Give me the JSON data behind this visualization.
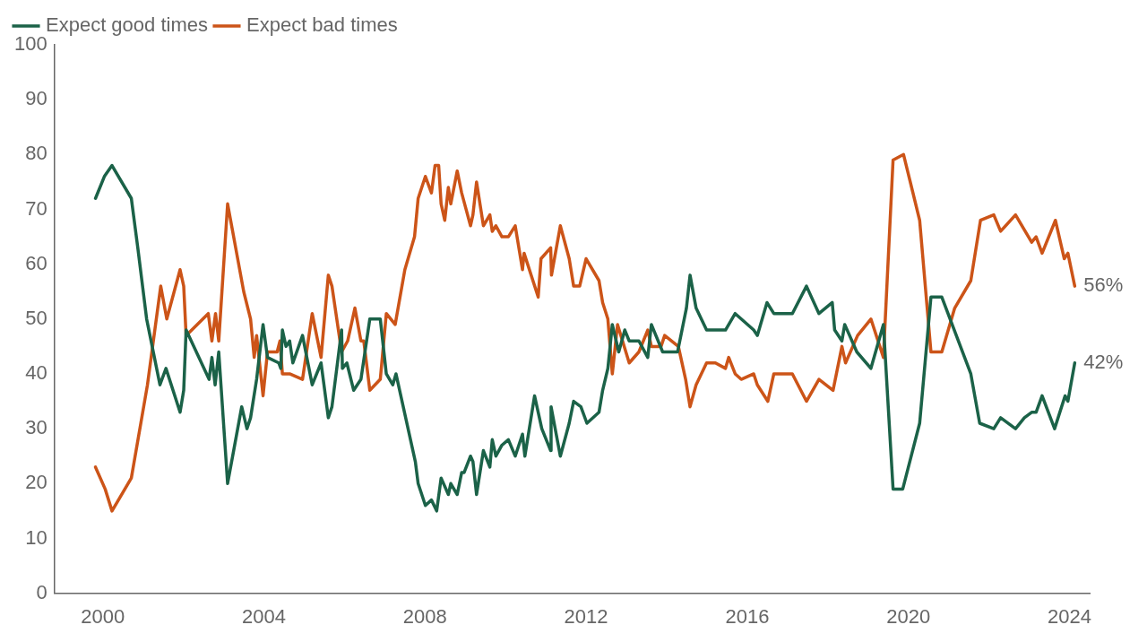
{
  "chart_data": {
    "type": "line",
    "legend": "top left",
    "grid": false,
    "marker": "none",
    "line_style": "solid",
    "xlim": [
      1998.8,
      2024.5
    ],
    "xticks": [
      2000,
      2004,
      2008,
      2012,
      2016,
      2020,
      2024
    ],
    "ylim": [
      0,
      100
    ],
    "yticks": [
      0,
      10,
      20,
      30,
      40,
      50,
      60,
      70,
      80,
      90,
      100
    ],
    "annotations": [
      {
        "text": "56%",
        "x": 2024.13,
        "y": 56
      },
      {
        "text": "42%",
        "x": 2024.13,
        "y": 42
      }
    ],
    "series": [
      {
        "name": "Expect good times",
        "color": "#1b6248",
        "x": [
          1999.82,
          2000.04,
          2000.23,
          2000.71,
          2000.87,
          2001.09,
          2001.42,
          2001.57,
          2001.92,
          2002.01,
          2002.07,
          2002.64,
          2002.71,
          2002.79,
          2002.88,
          2003.1,
          2003.45,
          2003.58,
          2003.67,
          2003.82,
          2003.98,
          2004.09,
          2004.37,
          2004.42,
          2004.46,
          2004.55,
          2004.64,
          2004.72,
          2004.96,
          2005.2,
          2005.42,
          2005.6,
          2005.69,
          2005.93,
          2005.95,
          2006.06,
          2006.23,
          2006.41,
          2006.63,
          2006.89,
          2007.04,
          2007.2,
          2007.28,
          2007.76,
          2007.83,
          2008.01,
          2008.16,
          2008.29,
          2008.4,
          2008.58,
          2008.64,
          2008.8,
          2008.91,
          2008.97,
          2009.13,
          2009.19,
          2009.28,
          2009.45,
          2009.61,
          2009.67,
          2009.76,
          2009.91,
          2010.07,
          2010.24,
          2010.42,
          2010.48,
          2010.72,
          2010.9,
          2011.12,
          2011.13,
          2011.36,
          2011.58,
          2011.69,
          2011.87,
          2012.02,
          2012.32,
          2012.41,
          2012.54,
          2012.65,
          2012.81,
          2012.96,
          2013.07,
          2013.31,
          2013.53,
          2013.62,
          2013.9,
          2014.27,
          2014.49,
          2014.58,
          2014.73,
          2014.99,
          2015.46,
          2015.7,
          2016.16,
          2016.25,
          2016.49,
          2016.66,
          2017.12,
          2017.47,
          2017.78,
          2018.11,
          2018.17,
          2018.35,
          2018.42,
          2018.72,
          2019.07,
          2019.38,
          2019.62,
          2019.86,
          2020.28,
          2020.56,
          2020.83,
          2021.55,
          2021.77,
          2022.12,
          2022.29,
          2022.66,
          2022.88,
          2023.06,
          2023.17,
          2023.32,
          2023.63,
          2023.89,
          2023.96,
          2024.13
        ],
        "values": [
          72,
          76,
          78,
          72,
          63,
          50,
          38,
          41,
          33,
          37,
          48,
          39,
          43,
          38,
          44,
          20,
          34,
          30,
          32,
          39,
          49,
          43,
          42,
          41,
          48,
          45,
          46,
          42,
          47,
          38,
          42,
          32,
          34,
          48,
          41,
          42,
          37,
          39,
          50,
          50,
          40,
          38,
          40,
          24,
          20,
          16,
          17,
          15,
          21,
          18,
          20,
          18,
          22,
          22,
          25,
          24,
          18,
          26,
          23,
          28,
          25,
          27,
          28,
          25,
          29,
          25,
          36,
          30,
          26,
          34,
          25,
          31,
          35,
          34,
          31,
          33,
          37,
          41,
          49,
          44,
          48,
          46,
          46,
          43,
          49,
          44,
          44,
          52,
          58,
          52,
          48,
          48,
          51,
          48,
          47,
          53,
          51,
          51,
          56,
          51,
          53,
          48,
          46,
          49,
          44,
          41,
          49,
          19,
          19,
          31,
          54,
          54,
          40,
          31,
          30,
          32,
          30,
          32,
          33,
          33,
          36,
          30,
          36,
          35,
          42
        ]
      },
      {
        "name": "Expect bad times",
        "color": "#cc5418",
        "x": [
          1999.82,
          2000.06,
          2000.23,
          2000.71,
          2001.11,
          2001.44,
          2001.59,
          2001.92,
          2002.01,
          2002.07,
          2002.62,
          2002.71,
          2002.8,
          2002.88,
          2003.1,
          2003.5,
          2003.67,
          2003.76,
          2003.82,
          2003.98,
          2004.09,
          2004.33,
          2004.4,
          2004.46,
          2004.64,
          2004.96,
          2005.2,
          2005.42,
          2005.6,
          2005.69,
          2005.93,
          2006.08,
          2006.26,
          2006.41,
          2006.48,
          2006.63,
          2006.89,
          2007.04,
          2007.26,
          2007.5,
          2007.74,
          2007.83,
          2008.01,
          2008.16,
          2008.25,
          2008.34,
          2008.4,
          2008.49,
          2008.58,
          2008.64,
          2008.8,
          2008.91,
          2009.13,
          2009.19,
          2009.28,
          2009.45,
          2009.61,
          2009.67,
          2009.76,
          2009.91,
          2010.07,
          2010.24,
          2010.42,
          2010.46,
          2010.81,
          2010.88,
          2011.12,
          2011.14,
          2011.36,
          2011.58,
          2011.69,
          2011.84,
          2012,
          2012.32,
          2012.41,
          2012.54,
          2012.65,
          2012.78,
          2013.07,
          2013.31,
          2013.53,
          2013.62,
          2013.86,
          2013.95,
          2014.29,
          2014.47,
          2014.58,
          2014.73,
          2014.99,
          2015.21,
          2015.46,
          2015.54,
          2015.7,
          2015.85,
          2016.16,
          2016.25,
          2016.51,
          2016.66,
          2017.12,
          2017.47,
          2017.78,
          2018.13,
          2018.35,
          2018.44,
          2018.74,
          2019.07,
          2019.38,
          2019.62,
          2019.88,
          2020.28,
          2020.56,
          2020.83,
          2021.15,
          2021.55,
          2021.79,
          2022.12,
          2022.29,
          2022.66,
          2023.06,
          2023.17,
          2023.32,
          2023.65,
          2023.87,
          2023.96,
          2024.13
        ],
        "values": [
          23,
          19,
          15,
          21,
          38,
          56,
          50,
          59,
          56,
          47,
          51,
          46,
          51,
          46,
          71,
          55,
          50,
          43,
          47,
          36,
          44,
          44,
          46,
          40,
          40,
          39,
          51,
          43,
          58,
          56,
          44,
          46,
          52,
          46,
          46,
          37,
          39,
          51,
          49,
          59,
          65,
          72,
          76,
          73,
          78,
          78,
          71,
          68,
          74,
          71,
          77,
          73,
          67,
          69,
          75,
          67,
          69,
          66,
          67,
          65,
          65,
          67,
          59,
          62,
          54,
          61,
          63,
          58,
          67,
          61,
          56,
          56,
          61,
          57,
          53,
          50,
          40,
          49,
          42,
          44,
          48,
          45,
          45,
          47,
          45,
          39,
          34,
          38,
          42,
          42,
          41,
          43,
          40,
          39,
          40,
          38,
          35,
          40,
          40,
          35,
          39,
          37,
          45,
          42,
          47,
          50,
          43,
          79,
          80,
          68,
          44,
          44,
          52,
          57,
          68,
          69,
          66,
          69,
          64,
          65,
          62,
          68,
          61,
          62,
          56
        ]
      }
    ]
  }
}
